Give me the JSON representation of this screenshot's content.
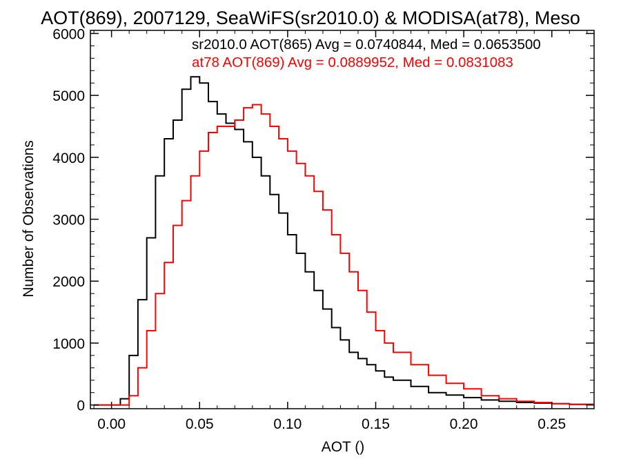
{
  "chart_data": {
    "type": "line",
    "style": "step-histogram",
    "title": "AOT(869), 2007129, SeaWiFS(sr2010.0) & MODISA(at78), Meso",
    "xlabel": "AOT ()",
    "ylabel": "Number of Observations",
    "xlim": [
      -0.012,
      0.274
    ],
    "ylim": [
      -60,
      6050
    ],
    "x_ticks": [
      0.0,
      0.05,
      0.1,
      0.15,
      0.2,
      0.25
    ],
    "x_tick_labels": [
      "0.00",
      "0.05",
      "0.10",
      "0.15",
      "0.20",
      "0.25"
    ],
    "y_ticks": [
      0,
      1000,
      2000,
      3000,
      4000,
      5000,
      6000
    ],
    "y_tick_labels": [
      "0",
      "1000",
      "2000",
      "3000",
      "4000",
      "5000",
      "6000"
    ],
    "grid": false,
    "annotations": [
      {
        "text": "sr2010.0 AOT(865) Avg = 0.0740844, Med = 0.0653500",
        "color": "#000000"
      },
      {
        "text": "at78 AOT(869) Avg = 0.0889952, Med = 0.0831083",
        "color": "#ff0000"
      }
    ],
    "series": [
      {
        "color": "#000000",
        "x": [
          -0.01,
          0.0,
          0.005,
          0.01,
          0.015,
          0.02,
          0.025,
          0.03,
          0.035,
          0.04,
          0.045,
          0.05,
          0.055,
          0.06,
          0.065,
          0.07,
          0.075,
          0.08,
          0.085,
          0.09,
          0.095,
          0.1,
          0.105,
          0.11,
          0.115,
          0.12,
          0.125,
          0.13,
          0.135,
          0.14,
          0.145,
          0.15,
          0.155,
          0.16,
          0.17,
          0.18,
          0.19,
          0.2,
          0.21,
          0.22,
          0.23,
          0.24,
          0.25,
          0.26,
          0.274
        ],
        "values": [
          0,
          0,
          100,
          800,
          1700,
          2700,
          3700,
          4300,
          4600,
          5100,
          5300,
          5200,
          4900,
          4700,
          4550,
          4450,
          4250,
          4000,
          3700,
          3400,
          3100,
          2750,
          2450,
          2150,
          1850,
          1550,
          1250,
          1050,
          850,
          750,
          650,
          550,
          450,
          400,
          300,
          200,
          160,
          120,
          80,
          60,
          40,
          30,
          20,
          10,
          0
        ]
      },
      {
        "color": "#ff0000",
        "x": [
          -0.01,
          0.0,
          0.005,
          0.01,
          0.015,
          0.02,
          0.025,
          0.03,
          0.035,
          0.04,
          0.045,
          0.05,
          0.055,
          0.06,
          0.065,
          0.07,
          0.075,
          0.08,
          0.085,
          0.09,
          0.095,
          0.1,
          0.105,
          0.11,
          0.115,
          0.12,
          0.125,
          0.13,
          0.135,
          0.14,
          0.145,
          0.15,
          0.155,
          0.16,
          0.17,
          0.18,
          0.19,
          0.2,
          0.21,
          0.22,
          0.23,
          0.24,
          0.25,
          0.26,
          0.274
        ],
        "values": [
          0,
          0,
          0,
          150,
          600,
          1200,
          1800,
          2300,
          2900,
          3300,
          3700,
          4100,
          4400,
          4500,
          4500,
          4600,
          4800,
          4850,
          4700,
          4500,
          4300,
          4100,
          3900,
          3700,
          3450,
          3150,
          2750,
          2450,
          2150,
          1850,
          1500,
          1200,
          1000,
          850,
          650,
          480,
          350,
          260,
          150,
          100,
          60,
          40,
          20,
          10,
          0
        ]
      }
    ]
  }
}
